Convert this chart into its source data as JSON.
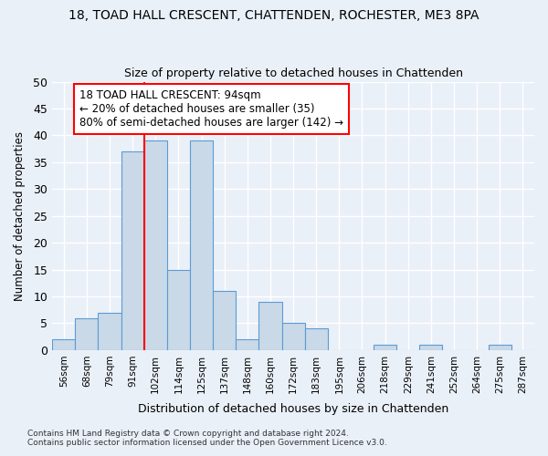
{
  "title": "18, TOAD HALL CRESCENT, CHATTENDEN, ROCHESTER, ME3 8PA",
  "subtitle": "Size of property relative to detached houses in Chattenden",
  "xlabel": "Distribution of detached houses by size in Chattenden",
  "ylabel": "Number of detached properties",
  "bin_labels": [
    "56sqm",
    "68sqm",
    "79sqm",
    "91sqm",
    "102sqm",
    "114sqm",
    "125sqm",
    "137sqm",
    "148sqm",
    "160sqm",
    "172sqm",
    "183sqm",
    "195sqm",
    "206sqm",
    "218sqm",
    "229sqm",
    "241sqm",
    "252sqm",
    "264sqm",
    "275sqm",
    "287sqm"
  ],
  "bar_values": [
    2,
    6,
    7,
    37,
    39,
    15,
    39,
    11,
    2,
    9,
    5,
    4,
    0,
    0,
    1,
    0,
    1,
    0,
    0,
    1,
    0
  ],
  "bar_color": "#c9d9e8",
  "bar_edge_color": "#5b9bd5",
  "ylim": [
    0,
    50
  ],
  "yticks": [
    0,
    5,
    10,
    15,
    20,
    25,
    30,
    35,
    40,
    45,
    50
  ],
  "property_line_x": 3.5,
  "annotation_text": "18 TOAD HALL CRESCENT: 94sqm\n← 20% of detached houses are smaller (35)\n80% of semi-detached houses are larger (142) →",
  "footnote1": "Contains HM Land Registry data © Crown copyright and database right 2024.",
  "footnote2": "Contains public sector information licensed under the Open Government Licence v3.0.",
  "bg_color": "#eaf0f8",
  "plot_bg_color": "#eaf0f8",
  "grid_color": "#ffffff"
}
